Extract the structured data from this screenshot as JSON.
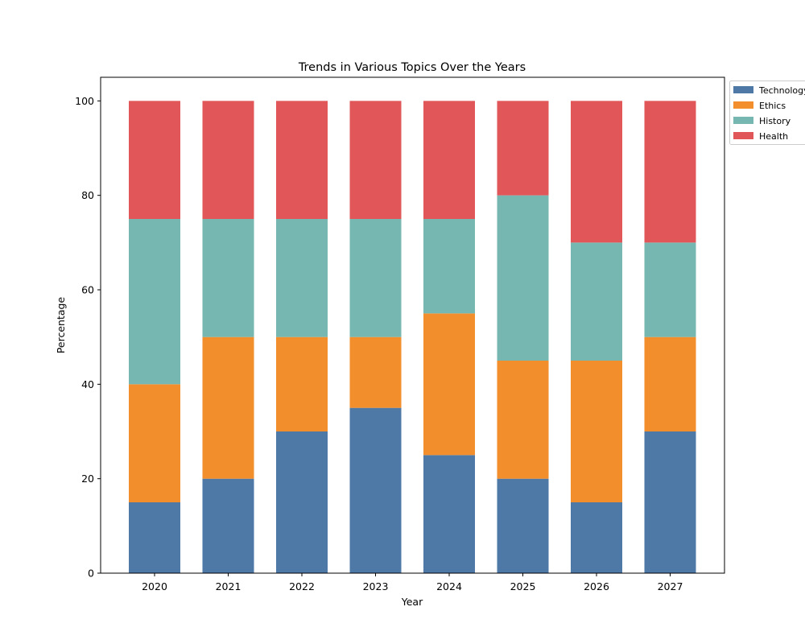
{
  "chart_data": {
    "type": "bar",
    "stacked": true,
    "title": "Trends in Various Topics Over the Years",
    "xlabel": "Year",
    "ylabel": "Percentage",
    "categories": [
      "2020",
      "2021",
      "2022",
      "2023",
      "2024",
      "2025",
      "2026",
      "2027"
    ],
    "ylim": [
      0,
      105
    ],
    "yticks": [
      0,
      20,
      40,
      60,
      80,
      100
    ],
    "grid": false,
    "legend_position": "upper right, outside the plot area",
    "series": [
      {
        "name": "Technology",
        "color": "#4e79a7",
        "values": [
          15,
          20,
          30,
          35,
          25,
          20,
          15,
          30
        ]
      },
      {
        "name": "Ethics",
        "color": "#f28e2b",
        "values": [
          25,
          30,
          20,
          15,
          30,
          25,
          30,
          20
        ]
      },
      {
        "name": "History",
        "color": "#76b7b2",
        "values": [
          35,
          25,
          25,
          25,
          20,
          35,
          25,
          20
        ]
      },
      {
        "name": "Health",
        "color": "#e15759",
        "values": [
          25,
          25,
          25,
          25,
          25,
          20,
          30,
          30
        ]
      }
    ]
  }
}
